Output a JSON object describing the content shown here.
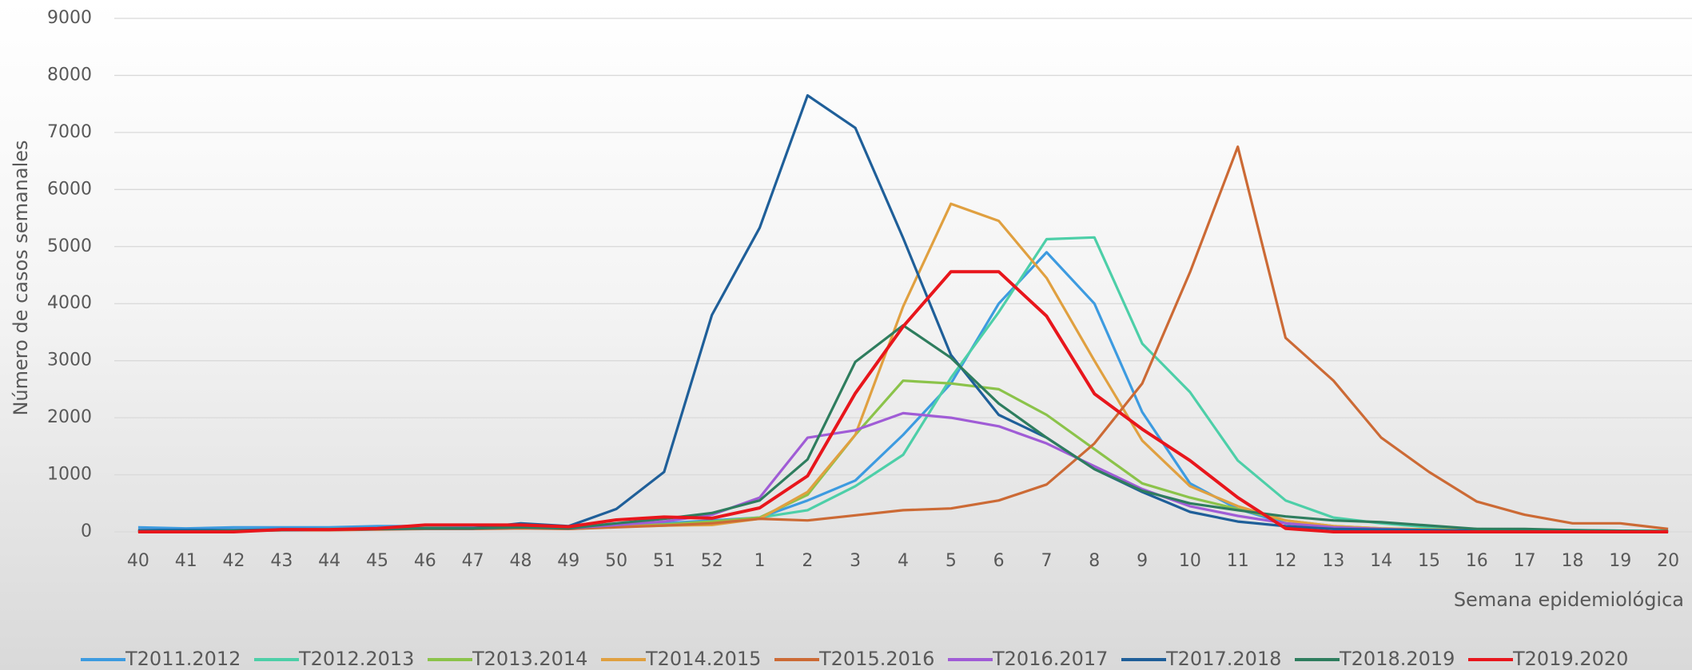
{
  "chart_data": {
    "type": "line",
    "x_label": "Semana epidemiológica",
    "y_label": "Número de casos semanales",
    "categories": [
      "40",
      "41",
      "42",
      "43",
      "44",
      "45",
      "46",
      "47",
      "48",
      "49",
      "50",
      "51",
      "52",
      "1",
      "2",
      "3",
      "4",
      "5",
      "6",
      "7",
      "8",
      "9",
      "10",
      "11",
      "12",
      "13",
      "14",
      "15",
      "16",
      "17",
      "18",
      "19",
      "20"
    ],
    "ylim": [
      0,
      9000
    ],
    "yticks": [
      0,
      1000,
      2000,
      3000,
      4000,
      5000,
      6000,
      7000,
      8000,
      9000
    ],
    "grid": true,
    "legend": "bottom",
    "series": [
      {
        "name": "T2011.2012",
        "color": "#3d9be0",
        "values": [
          80,
          60,
          80,
          80,
          80,
          100,
          100,
          80,
          100,
          60,
          120,
          150,
          200,
          250,
          550,
          900,
          1700,
          2600,
          4000,
          4900,
          4000,
          2100,
          850,
          400,
          150,
          80,
          50,
          30,
          20,
          20,
          10,
          10,
          10
        ]
      },
      {
        "name": "T2012.2013",
        "color": "#4dcfa8",
        "values": [
          20,
          20,
          30,
          40,
          50,
          60,
          70,
          60,
          80,
          60,
          90,
          120,
          150,
          250,
          380,
          800,
          1350,
          2700,
          3850,
          5130,
          5160,
          3300,
          2450,
          1250,
          550,
          250,
          150,
          80,
          50,
          40,
          30,
          20,
          20
        ]
      },
      {
        "name": "T2013.2014",
        "color": "#8bc34a",
        "values": [
          10,
          10,
          20,
          30,
          40,
          50,
          60,
          60,
          80,
          60,
          100,
          130,
          180,
          250,
          650,
          1700,
          2650,
          2600,
          2500,
          2050,
          1450,
          850,
          600,
          400,
          200,
          100,
          60,
          40,
          30,
          20,
          20,
          10,
          10
        ]
      },
      {
        "name": "T2014.2015",
        "color": "#e0a040",
        "values": [
          10,
          10,
          20,
          30,
          40,
          50,
          60,
          60,
          70,
          50,
          90,
          110,
          120,
          230,
          700,
          1700,
          3950,
          5750,
          5450,
          4450,
          3000,
          1600,
          800,
          450,
          200,
          100,
          60,
          40,
          30,
          20,
          20,
          10,
          10
        ]
      },
      {
        "name": "T2015.2016",
        "color": "#cc6a35",
        "values": [
          20,
          20,
          20,
          30,
          30,
          40,
          50,
          50,
          60,
          50,
          80,
          110,
          150,
          230,
          200,
          290,
          380,
          410,
          550,
          830,
          1550,
          2600,
          4550,
          6750,
          3400,
          2650,
          1650,
          1050,
          530,
          300,
          150,
          150,
          50
        ]
      },
      {
        "name": "T2016.2017",
        "color": "#a05cd6",
        "values": [
          10,
          10,
          20,
          30,
          40,
          50,
          60,
          60,
          80,
          60,
          120,
          180,
          300,
          600,
          1650,
          1780,
          2080,
          2000,
          1850,
          1550,
          1150,
          750,
          450,
          280,
          150,
          80,
          50,
          30,
          20,
          20,
          10,
          10,
          10
        ]
      },
      {
        "name": "T2017.2018",
        "color": "#1f5f99",
        "values": [
          30,
          30,
          30,
          40,
          40,
          50,
          60,
          60,
          150,
          100,
          400,
          1050,
          3800,
          5330,
          7650,
          7080,
          5150,
          3100,
          2050,
          1650,
          1100,
          700,
          350,
          180,
          100,
          50,
          40,
          30,
          20,
          20,
          10,
          10,
          10
        ]
      },
      {
        "name": "T2018.2019",
        "color": "#2e7d5e",
        "values": [
          10,
          10,
          20,
          30,
          40,
          50,
          60,
          60,
          80,
          60,
          150,
          230,
          330,
          550,
          1270,
          2980,
          3620,
          3050,
          2250,
          1650,
          1100,
          720,
          500,
          380,
          270,
          200,
          170,
          110,
          50,
          50,
          30,
          20,
          10
        ]
      },
      {
        "name": "T2019.2020",
        "color": "#e8161c",
        "values": [
          0,
          0,
          0,
          40,
          40,
          60,
          120,
          120,
          120,
          90,
          210,
          260,
          240,
          420,
          980,
          2430,
          3600,
          4560,
          4560,
          3780,
          2420,
          1800,
          1250,
          600,
          60,
          0,
          0,
          0,
          0,
          0,
          0,
          0,
          0
        ]
      }
    ]
  }
}
